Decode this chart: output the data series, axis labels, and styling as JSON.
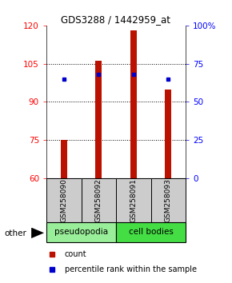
{
  "title": "GDS3288 / 1442959_at",
  "samples": [
    "GSM258090",
    "GSM258092",
    "GSM258091",
    "GSM258093"
  ],
  "bar_bottom": 60,
  "bar_tops": [
    75,
    106,
    118,
    95
  ],
  "percentile_values": [
    65,
    68,
    68,
    65
  ],
  "bar_color": "#BB1100",
  "dot_color": "#0000CC",
  "ylim_left": [
    60,
    120
  ],
  "ylim_right": [
    0,
    100
  ],
  "yticks_left": [
    60,
    75,
    90,
    105,
    120
  ],
  "yticks_right": [
    0,
    25,
    50,
    75,
    100
  ],
  "ytick_labels_right": [
    "0",
    "25",
    "50",
    "75",
    "100%"
  ],
  "legend_count_color": "#BB1100",
  "legend_pct_color": "#0000CC",
  "background_color": "#ffffff",
  "sample_bg_color": "#cccccc",
  "group_defs": [
    {
      "label": "pseudopodia",
      "color": "#99EE99"
    },
    {
      "label": "cell bodies",
      "color": "#44DD44"
    }
  ]
}
